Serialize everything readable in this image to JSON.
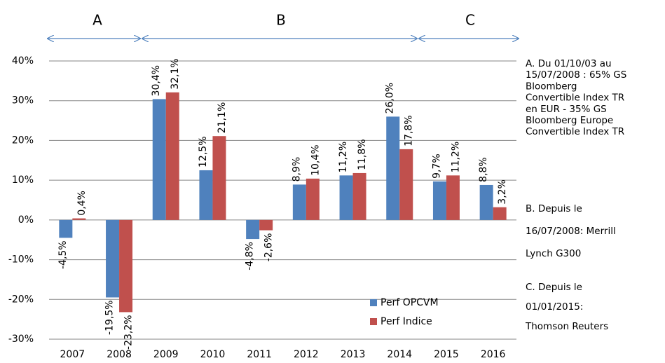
{
  "chart_data": {
    "type": "bar",
    "categories": [
      "2007",
      "2008",
      "2009",
      "2010",
      "2011",
      "2012",
      "2013",
      "2014",
      "2015",
      "2016"
    ],
    "series": [
      {
        "name": "Perf OPCVM",
        "color": "#4f81bd",
        "values": [
          -4.5,
          -19.5,
          30.4,
          12.5,
          -4.8,
          8.9,
          11.2,
          26.0,
          9.7,
          8.8
        ],
        "value_labels": [
          "-4,5%",
          "-19,5%",
          "30,4%",
          "12,5%",
          "-4,8%",
          "8,9%",
          "11,2%",
          "26,0%",
          "9,7%",
          "8,8%"
        ]
      },
      {
        "name": "Perf Indice",
        "color": "#c0504d",
        "values": [
          0.4,
          -23.2,
          32.1,
          21.1,
          -2.6,
          10.4,
          11.8,
          17.8,
          11.2,
          3.2
        ],
        "value_labels": [
          "0,4%",
          "-23,2%",
          "32,1%",
          "21,1%",
          "-2,6%",
          "10,4%",
          "11,8%",
          "17,8%",
          "11,2%",
          "3,2%"
        ]
      }
    ],
    "ylim": [
      -30,
      40
    ],
    "yticks": [
      {
        "value": -30,
        "label": "-30%"
      },
      {
        "value": -20,
        "label": "-20%"
      },
      {
        "value": -10,
        "label": "-10%"
      },
      {
        "value": 0,
        "label": "0%"
      },
      {
        "value": 10,
        "label": "10%"
      },
      {
        "value": 20,
        "label": "20%"
      },
      {
        "value": 30,
        "label": "30%"
      },
      {
        "value": 40,
        "label": "40%"
      }
    ],
    "grid": true,
    "legend_position": "lower-right",
    "periods": [
      "A",
      "B",
      "C"
    ],
    "notes": [
      [
        "A. Du 01/10/03 au",
        "15/07/2008 : 65% GS",
        "Bloomberg",
        "Convertible Index TR",
        "en EUR - 35% GS",
        "Bloomberg  Europe",
        "Convertible Index TR"
      ],
      [
        "B. Depuis le",
        "16/07/2008: Merrill",
        "Lynch G300"
      ],
      [
        "C. Depuis le",
        "01/01/2015:",
        "Thomson Reuters"
      ]
    ]
  }
}
